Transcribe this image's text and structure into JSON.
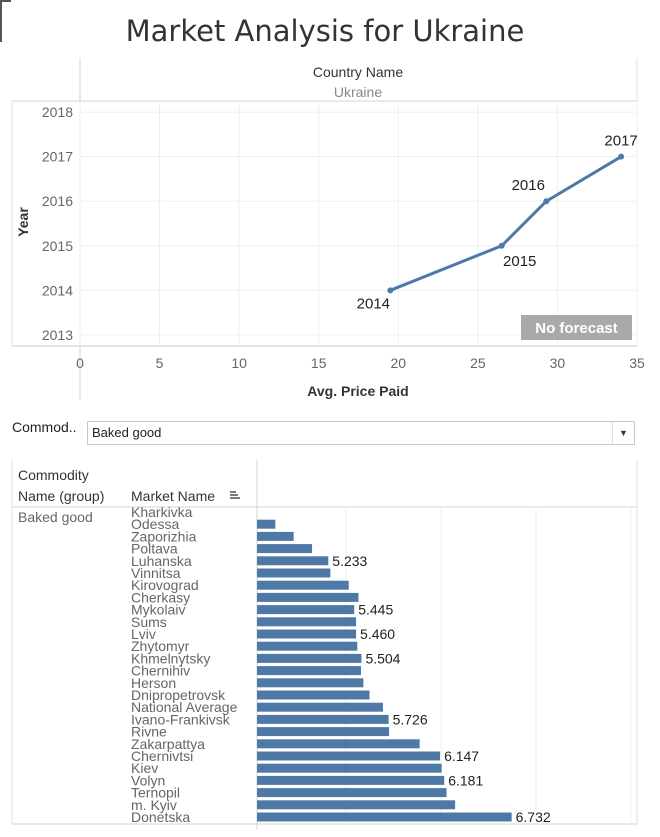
{
  "page_title": "Market Analysis for Ukraine",
  "filter": {
    "label": "Commod..",
    "selected": "Baked good"
  },
  "line_chart": {
    "header_label": "Country Name",
    "header_value": "Ukraine",
    "forecast_badge": "No forecast"
  },
  "bar_chart": {
    "col1_header_line1": "Commodity",
    "col1_header_line2": "Name (group)",
    "col2_header": "Market Name",
    "group_value": "Baked good"
  },
  "colors": {
    "line": "#4e79a7",
    "bar": "#4e79a7",
    "badge": "#a9a9a9"
  },
  "chart_data": [
    {
      "type": "line",
      "title": "",
      "xlabel": "Avg. Price Paid",
      "ylabel": "Year",
      "xlim": [
        0,
        35
      ],
      "ylim": [
        2012.75,
        2018.25
      ],
      "x_ticks": [
        0,
        5,
        10,
        15,
        20,
        25,
        30,
        35
      ],
      "y_ticks": [
        2013,
        2014,
        2015,
        2016,
        2017,
        2018
      ],
      "grid": true,
      "points": [
        {
          "x": 19.5,
          "y": 2014,
          "label": "2014"
        },
        {
          "x": 26.5,
          "y": 2015,
          "label": "2015"
        },
        {
          "x": 29.3,
          "y": 2016,
          "label": "2016"
        },
        {
          "x": 34.0,
          "y": 2017,
          "label": "2017"
        }
      ]
    },
    {
      "type": "bar",
      "orientation": "horizontal",
      "xlim": [
        0,
        7.7
      ],
      "grid": true,
      "categories": [
        "Kharkivka",
        "Odessa",
        "Zaporizhia",
        "Poltava",
        "Luhanska",
        "Vinnitsa",
        "Kirovograd",
        "Cherkasy",
        "Mykolaiv",
        "Sums",
        "Lviv",
        "Zhytomyr",
        "Khmelnytsky",
        "Chernihiv",
        "Herson",
        "Dnipropetrovsk",
        "National Average",
        "Ivano-Frankivsk",
        "Rivne",
        "Zakarpattya",
        "Chernivtsi",
        "Kiev",
        "Volyn",
        "Ternopil",
        "m. Kyiv",
        "Donetska"
      ],
      "values": [
        null,
        4.8,
        4.95,
        5.1,
        5.233,
        5.25,
        5.4,
        5.48,
        5.445,
        5.46,
        5.46,
        5.47,
        5.504,
        5.5,
        5.52,
        5.57,
        5.68,
        5.726,
        5.73,
        5.98,
        6.147,
        6.16,
        6.181,
        6.2,
        6.27,
        6.732
      ],
      "data_labels": [
        {
          "category": "Luhanska",
          "text": "5.233"
        },
        {
          "category": "Mykolaiv",
          "text": "5.445"
        },
        {
          "category": "Lviv",
          "text": "5.460"
        },
        {
          "category": "Khmelnytsky",
          "text": "5.504"
        },
        {
          "category": "Ivano-Frankivsk",
          "text": "5.726"
        },
        {
          "category": "Chernivtsi",
          "text": "6.147"
        },
        {
          "category": "Volyn",
          "text": "6.181"
        },
        {
          "category": "Donetska",
          "text": "6.732"
        }
      ]
    }
  ]
}
